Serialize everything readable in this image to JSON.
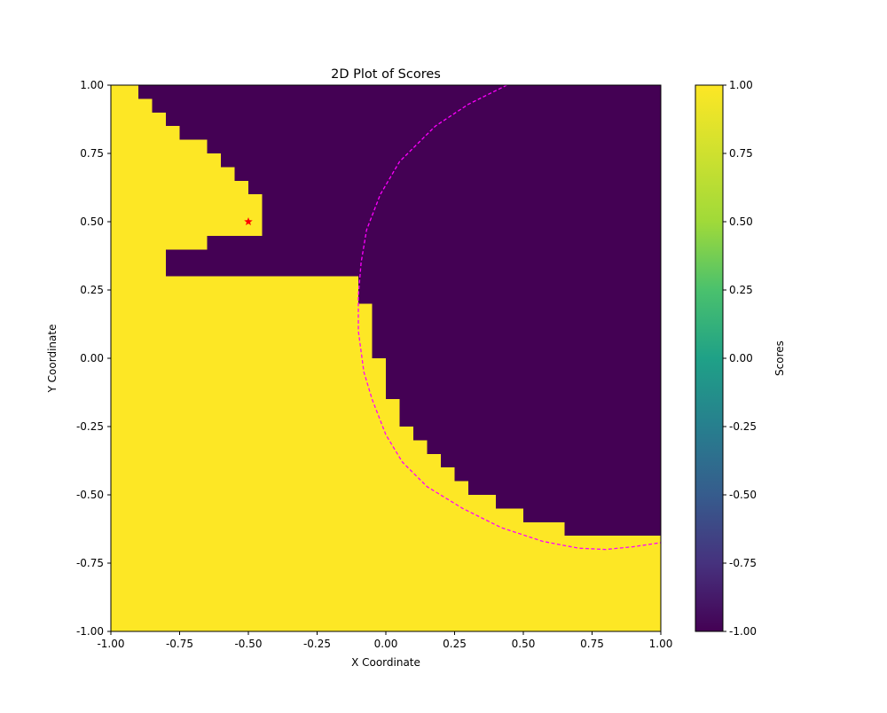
{
  "chart_data": {
    "type": "heatmap",
    "title": "2D Plot of Scores",
    "xlabel": "X Coordinate",
    "ylabel": "Y Coordinate",
    "xlim": [
      -1.0,
      1.0
    ],
    "ylim": [
      -1.0,
      1.0
    ],
    "xticks": [
      "-1.00",
      "-0.75",
      "-0.50",
      "-0.25",
      "0.00",
      "0.25",
      "0.50",
      "0.75",
      "1.00"
    ],
    "yticks": [
      "-1.00",
      "-0.75",
      "-0.50",
      "-0.25",
      "0.00",
      "0.25",
      "0.50",
      "0.75",
      "1.00"
    ],
    "grid": false,
    "colormap": "viridis",
    "value_range": [
      -1.0,
      1.0
    ],
    "colors": {
      "high": "#fde725",
      "low": "#440154",
      "boundary": "#ff00ff",
      "marker": "#ff0000"
    },
    "colorbar": {
      "label": "Scores",
      "ticks": [
        "1.00",
        "0.75",
        "0.50",
        "0.25",
        "0.00",
        "-0.25",
        "-0.50",
        "-0.75",
        "-1.00"
      ]
    },
    "grid_size": 40,
    "yellow_region_rows_top_to_bottom": [
      [
        -1.0,
        -0.9
      ],
      [
        -1.0,
        -0.85
      ],
      [
        -1.0,
        -0.8
      ],
      [
        -1.0,
        -0.75
      ],
      [
        -1.0,
        -0.65
      ],
      [
        -1.0,
        -0.6
      ],
      [
        -1.0,
        -0.55
      ],
      [
        -1.0,
        -0.5
      ],
      [
        -1.0,
        -0.45
      ],
      [
        -1.0,
        -0.45
      ],
      [
        -1.0,
        -0.45
      ],
      [
        -1.0,
        -0.65
      ],
      [
        -1.0,
        -0.8
      ],
      [
        -1.0,
        -0.8
      ],
      [
        -1.0,
        -0.1
      ],
      [
        -1.0,
        -0.1
      ],
      [
        -1.0,
        -0.05
      ],
      [
        -1.0,
        -0.05
      ],
      [
        -1.0,
        -0.05
      ],
      [
        -1.0,
        -0.05
      ],
      [
        -1.0,
        0.0
      ],
      [
        -1.0,
        0.0
      ],
      [
        -1.0,
        0.0
      ],
      [
        -1.0,
        0.05
      ],
      [
        -1.0,
        0.05
      ],
      [
        -1.0,
        0.1
      ],
      [
        -1.0,
        0.15
      ],
      [
        -1.0,
        0.2
      ],
      [
        -1.0,
        0.25
      ],
      [
        -1.0,
        0.3
      ],
      [
        -1.0,
        0.4
      ],
      [
        -1.0,
        0.5
      ],
      [
        -1.0,
        0.65
      ],
      [
        -1.0,
        1.0
      ],
      [
        -1.0,
        1.0
      ],
      [
        -1.0,
        1.0
      ],
      [
        -1.0,
        1.0
      ],
      [
        -1.0,
        1.0
      ],
      [
        -1.0,
        1.0
      ],
      [
        -1.0,
        1.0
      ]
    ],
    "boundary_curve": {
      "style": "dashed",
      "points": [
        [
          0.44,
          1.0
        ],
        [
          0.3,
          0.93
        ],
        [
          0.18,
          0.85
        ],
        [
          0.05,
          0.72
        ],
        [
          -0.02,
          0.6
        ],
        [
          -0.07,
          0.47
        ],
        [
          -0.09,
          0.35
        ],
        [
          -0.1,
          0.23
        ],
        [
          -0.1,
          0.1
        ],
        [
          -0.08,
          -0.05
        ],
        [
          -0.05,
          -0.15
        ],
        [
          0.0,
          -0.28
        ],
        [
          0.06,
          -0.38
        ],
        [
          0.15,
          -0.47
        ],
        [
          0.28,
          -0.55
        ],
        [
          0.42,
          -0.62
        ],
        [
          0.57,
          -0.67
        ],
        [
          0.7,
          -0.695
        ],
        [
          0.8,
          -0.7
        ],
        [
          0.9,
          -0.69
        ],
        [
          1.0,
          -0.675
        ]
      ]
    },
    "marker": {
      "shape": "star",
      "x": -0.5,
      "y": 0.5
    }
  }
}
